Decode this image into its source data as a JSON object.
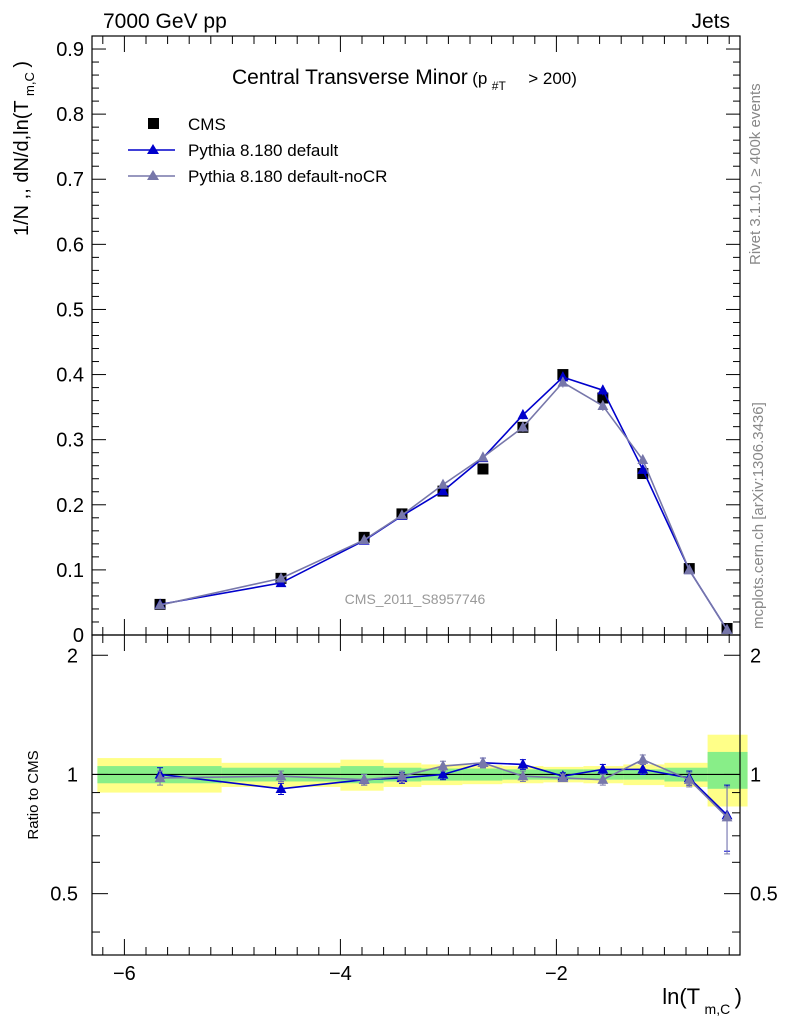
{
  "header": {
    "left": "7000 GeV pp",
    "right": "Jets"
  },
  "plot_title_main": "Central Transverse Minor",
  "plot_title_cut_prefix": "(p",
  "plot_title_cut_sub": "#T",
  "plot_title_cut_suffix": "> 200)",
  "side_labels": {
    "rivet": "Rivet 3.1.10, ≥ 400k events",
    "mcplots": "mcplots.cern.ch [arXiv:1306.3436]"
  },
  "watermark": "CMS_2011_S8957746",
  "ylabel_main_prefix": "1/N ,, dN/d,ln(T",
  "ylabel_main_sub": "m,C",
  "ylabel_main_suffix": ")",
  "ylabel_ratio": "Ratio to CMS",
  "xlabel_prefix": "ln(T",
  "xlabel_sub": "m,C",
  "xlabel_suffix": ")",
  "colors": {
    "cms": "#000000",
    "pythia_default": "#0000cc",
    "pythia_nocr": "#7777aa",
    "band_inner": "#88ee88",
    "band_outer": "#ffff88"
  },
  "chart_data": [
    {
      "type": "line",
      "title": "Central Transverse Minor (p#T > 200)",
      "xlabel": "ln(T m,C)",
      "ylabel": "1/N ,, dN/d,ln(T m,C)",
      "xlim": [
        -6.3,
        -0.3
      ],
      "ylim": [
        0,
        0.92
      ],
      "x_ticks": [
        -6,
        -4,
        -2
      ],
      "x_tick_labels": [
        "−6",
        "−4",
        "−2"
      ],
      "y_ticks": [
        0,
        0.1,
        0.2,
        0.3,
        0.4,
        0.5,
        0.6,
        0.7,
        0.8,
        0.9
      ],
      "y_tick_labels": [
        "0",
        "0.1",
        "0.2",
        "0.3",
        "0.4",
        "0.5",
        "0.6",
        "0.7",
        "0.8",
        "0.9"
      ],
      "legend_position": "top-left",
      "series": [
        {
          "name": "CMS",
          "marker": "square",
          "x": [
            -5.67,
            -4.55,
            -3.78,
            -3.43,
            -3.05,
            -2.68,
            -2.31,
            -1.94,
            -1.57,
            -1.2,
            -0.77,
            -0.42
          ],
          "y": [
            0.047,
            0.087,
            0.15,
            0.186,
            0.221,
            0.255,
            0.319,
            0.4,
            0.364,
            0.248,
            0.102,
            0.01
          ]
        },
        {
          "name": "Pythia 8.180 default",
          "marker": "triangle",
          "x": [
            -5.67,
            -4.55,
            -3.78,
            -3.43,
            -3.05,
            -2.68,
            -2.31,
            -1.94,
            -1.57,
            -1.2,
            -0.77,
            -0.42
          ],
          "y": [
            0.047,
            0.08,
            0.145,
            0.183,
            0.221,
            0.272,
            0.338,
            0.396,
            0.376,
            0.254,
            0.1,
            0.008
          ],
          "yerr": [
            0.002,
            0.003,
            0.004,
            0.004,
            0.005,
            0.006,
            0.007,
            0.008,
            0.008,
            0.006,
            0.004,
            0.002
          ]
        },
        {
          "name": "Pythia 8.180 default-noCR",
          "marker": "triangle",
          "x": [
            -5.67,
            -4.55,
            -3.78,
            -3.43,
            -3.05,
            -2.68,
            -2.31,
            -1.94,
            -1.57,
            -1.2,
            -0.77,
            -0.42
          ],
          "y": [
            0.046,
            0.087,
            0.146,
            0.184,
            0.231,
            0.273,
            0.319,
            0.388,
            0.352,
            0.269,
            0.1,
            0.008
          ],
          "yerr": [
            0.002,
            0.003,
            0.004,
            0.004,
            0.005,
            0.006,
            0.007,
            0.008,
            0.008,
            0.006,
            0.004,
            0.002
          ]
        }
      ]
    },
    {
      "type": "line",
      "title": "",
      "xlabel": "ln(T m,C)",
      "ylabel": "Ratio to CMS",
      "xlim": [
        -6.3,
        -0.3
      ],
      "ylim": [
        0.35,
        2.25
      ],
      "y_ticks": [
        0.5,
        1,
        2
      ],
      "y_tick_labels": [
        "0.5",
        "1",
        "2"
      ],
      "reference_line": 1,
      "bins": [
        -6.25,
        -5.1,
        -4.0,
        -3.6,
        -3.25,
        -2.87,
        -2.5,
        -2.12,
        -1.75,
        -1.38,
        -1.0,
        -0.6,
        -0.23
      ],
      "band_inner": [
        [
          0.95,
          1.05
        ],
        [
          0.96,
          1.04
        ],
        [
          0.95,
          1.05
        ],
        [
          0.96,
          1.04
        ],
        [
          0.965,
          1.035
        ],
        [
          0.965,
          1.035
        ],
        [
          0.97,
          1.03
        ],
        [
          0.97,
          1.03
        ],
        [
          0.97,
          1.03
        ],
        [
          0.97,
          1.03
        ],
        [
          0.96,
          1.04
        ],
        [
          0.92,
          1.14
        ]
      ],
      "band_outer": [
        [
          0.9,
          1.1
        ],
        [
          0.93,
          1.07
        ],
        [
          0.91,
          1.09
        ],
        [
          0.93,
          1.07
        ],
        [
          0.94,
          1.06
        ],
        [
          0.945,
          1.055
        ],
        [
          0.95,
          1.05
        ],
        [
          0.955,
          1.045
        ],
        [
          0.95,
          1.05
        ],
        [
          0.94,
          1.06
        ],
        [
          0.93,
          1.07
        ],
        [
          0.83,
          1.26
        ]
      ],
      "series": [
        {
          "name": "Pythia 8.180 default",
          "x": [
            -5.67,
            -4.55,
            -3.78,
            -3.43,
            -3.05,
            -2.68,
            -2.31,
            -1.94,
            -1.57,
            -1.2,
            -0.77,
            -0.42
          ],
          "y": [
            1.0,
            0.92,
            0.97,
            0.98,
            1.0,
            1.07,
            1.06,
            0.99,
            1.03,
            1.03,
            0.98,
            0.79
          ],
          "yerr": [
            0.04,
            0.03,
            0.03,
            0.03,
            0.03,
            0.03,
            0.03,
            0.02,
            0.03,
            0.03,
            0.04,
            0.15
          ]
        },
        {
          "name": "Pythia 8.180 default-noCR",
          "x": [
            -5.67,
            -4.55,
            -3.78,
            -3.43,
            -3.05,
            -2.68,
            -2.31,
            -1.94,
            -1.57,
            -1.2,
            -0.77,
            -0.42
          ],
          "y": [
            0.98,
            0.99,
            0.97,
            0.99,
            1.05,
            1.07,
            0.99,
            0.98,
            0.97,
            1.09,
            0.97,
            0.78
          ],
          "yerr": [
            0.04,
            0.03,
            0.03,
            0.03,
            0.03,
            0.03,
            0.03,
            0.02,
            0.03,
            0.03,
            0.04,
            0.15
          ]
        }
      ]
    }
  ]
}
